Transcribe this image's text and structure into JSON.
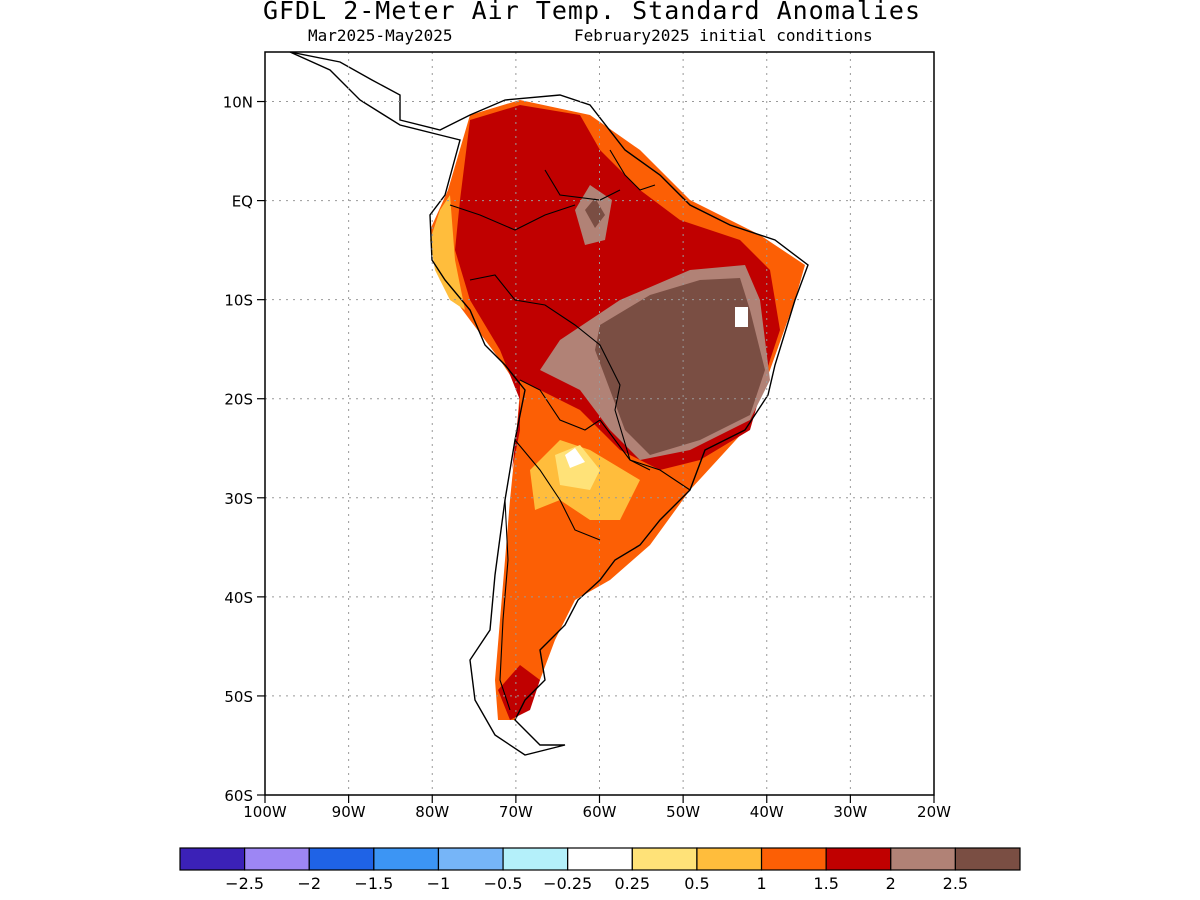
{
  "title": "GFDL 2-Meter Air Temp. Standard Anomalies",
  "subtitle_left": "Mar2025-May2025",
  "subtitle_right": "February2025 initial conditions",
  "map": {
    "projection": "lat-lon",
    "lon_range": [
      -100,
      -20
    ],
    "lat_range": [
      -60,
      15
    ],
    "lat_ticks": [
      "10N",
      "EQ",
      "10S",
      "20S",
      "30S",
      "40S",
      "50S",
      "60S"
    ],
    "lon_ticks": [
      "100W",
      "90W",
      "80W",
      "70W",
      "60W",
      "50W",
      "40W",
      "30W",
      "20W"
    ],
    "grid": true,
    "region": "South America"
  },
  "legend": {
    "colors": [
      "#3b21b7",
      "#9d86f4",
      "#1f63e6",
      "#3c95f4",
      "#76b5f8",
      "#b4f0fa",
      "#ffffff",
      "#ffe278",
      "#ffbd3c",
      "#fc5f05",
      "#c00000",
      "#b18276",
      "#7a4e43"
    ],
    "labels": [
      "-2.5",
      "-2",
      "-1.5",
      "-1",
      "-0.5",
      "-0.25",
      "0.25",
      "0.5",
      "1",
      "1.5",
      "2",
      "2.5"
    ]
  }
}
